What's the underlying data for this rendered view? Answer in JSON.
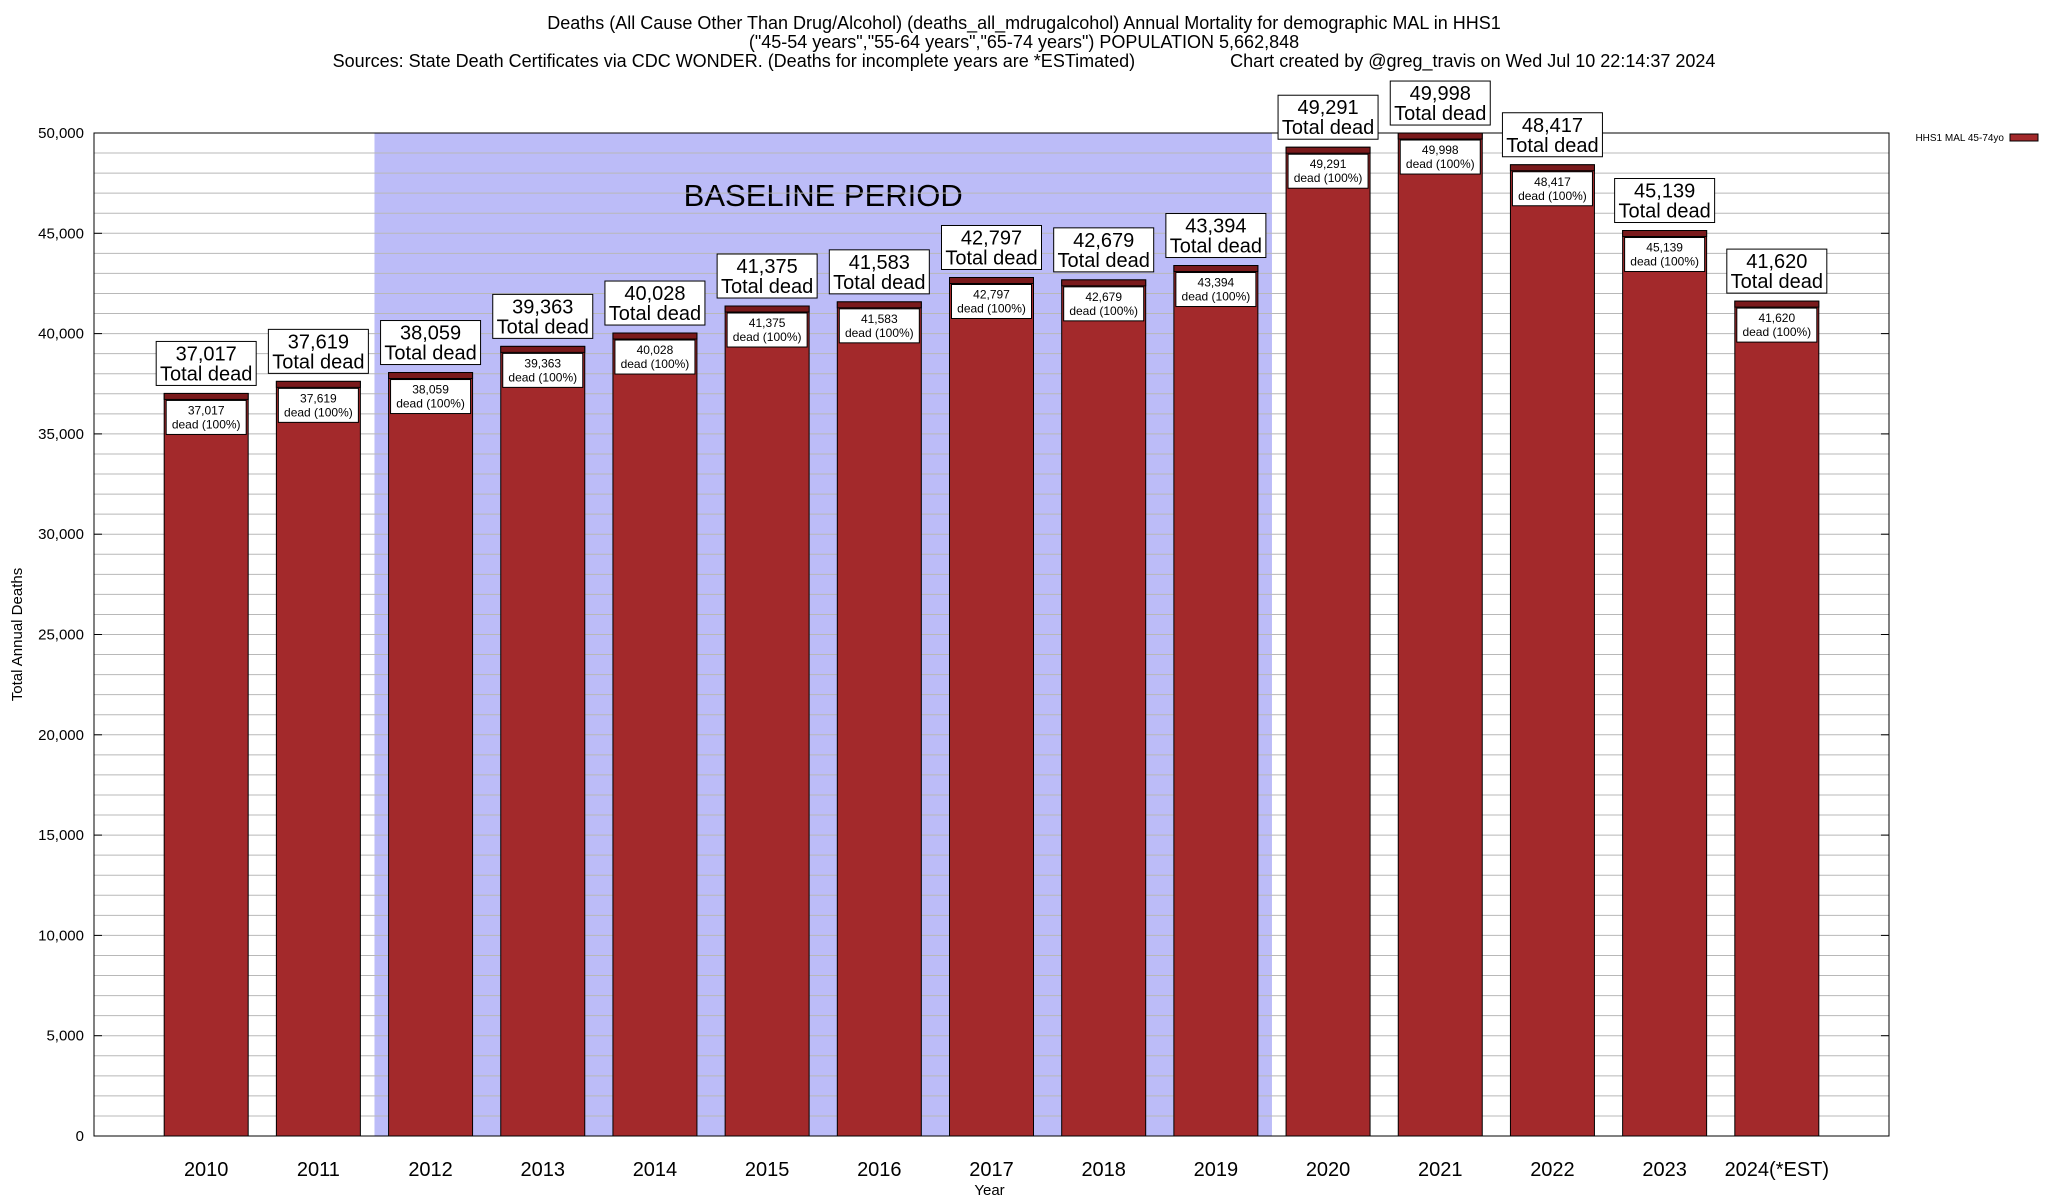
{
  "title": {
    "line1": "Deaths (All Cause Other Than Drug/Alcohol) (deaths_all_mdrugalcohol) Annual Mortality for demographic MAL in HHS1",
    "line2": "(\"45-54 years\",\"55-64 years\",\"65-74 years\") POPULATION 5,662,848",
    "sources": "Sources: State Death Certificates via CDC WONDER. (Deaths for incomplete years are *ESTimated)",
    "credit": "Chart created by @greg_travis on Wed Jul 10 22:14:37 2024"
  },
  "chart_data": {
    "type": "bar",
    "categories": [
      "2010",
      "2011",
      "2012",
      "2013",
      "2014",
      "2015",
      "2016",
      "2017",
      "2018",
      "2019",
      "2020",
      "2021",
      "2022",
      "2023",
      "2024(*EST)"
    ],
    "series": [
      {
        "name": "HHS1 MAL 45-74yo",
        "values": [
          37017,
          37619,
          38059,
          39363,
          40028,
          41375,
          41583,
          42797,
          42679,
          43394,
          49291,
          49998,
          48417,
          45139,
          41620
        ]
      }
    ],
    "top_labels": [
      "37,017",
      "37,619",
      "38,059",
      "39,363",
      "40,028",
      "41,375",
      "41,583",
      "42,797",
      "42,679",
      "43,394",
      "49,291",
      "49,998",
      "48,417",
      "45,139",
      "41,620"
    ],
    "top_label_suffix": "Total dead",
    "inner_label_suffix": "dead (100%)",
    "xlabel": "Year",
    "ylabel": "Total Annual Deaths",
    "ylim": [
      0,
      50000
    ],
    "yticks": [
      0,
      5000,
      10000,
      15000,
      20000,
      25000,
      30000,
      35000,
      40000,
      45000,
      50000
    ],
    "ytick_labels": [
      "0",
      "5,000",
      "10,000",
      "15,000",
      "20,000",
      "25,000",
      "30,000",
      "35,000",
      "40,000",
      "45,000",
      "50,000"
    ],
    "grid": true,
    "legend_position": "top-right",
    "baseline": {
      "label": "BASELINE PERIOD",
      "from": "2012",
      "to": "2019",
      "color": "#bcbcf8"
    },
    "bar_color": "#a3292b",
    "bar_cap_color": "#7a1a1c"
  }
}
